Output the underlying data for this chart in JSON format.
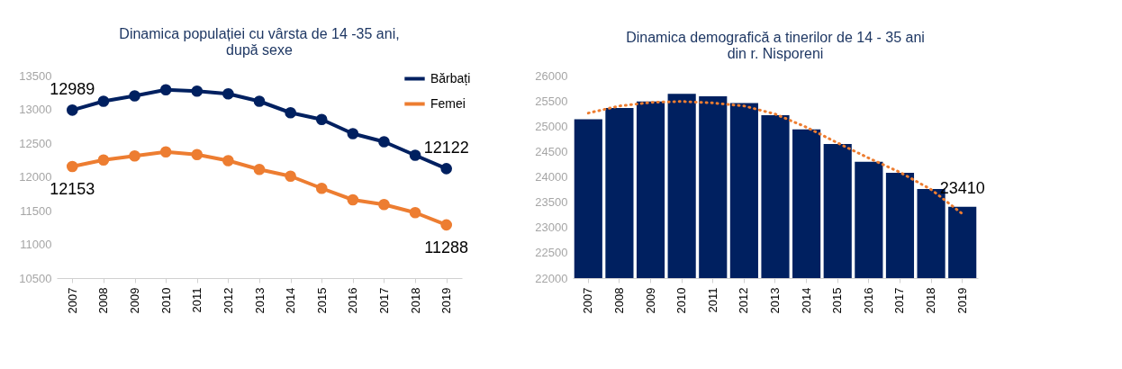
{
  "chart_data": [
    {
      "type": "line",
      "title": "Dinamica populației cu vârsta de 14 -35 ani,\ndupă sexe",
      "categories": [
        "2007",
        "2008",
        "2009",
        "2010",
        "2011",
        "2012",
        "2013",
        "2014",
        "2015",
        "2016",
        "2017",
        "2018",
        "2019"
      ],
      "series": [
        {
          "name": "Bărbați",
          "color": "#002060",
          "values": [
            12989,
            13120,
            13200,
            13290,
            13270,
            13230,
            13120,
            12950,
            12850,
            12640,
            12520,
            12320,
            12122
          ],
          "value_labels": [
            "12989",
            null,
            null,
            null,
            null,
            null,
            null,
            null,
            null,
            null,
            null,
            null,
            "12122"
          ]
        },
        {
          "name": "Femei",
          "color": "#ed7d31",
          "values": [
            12153,
            12250,
            12310,
            12370,
            12330,
            12240,
            12110,
            12010,
            11830,
            11660,
            11590,
            11470,
            11288
          ],
          "value_labels": [
            "12153",
            null,
            null,
            null,
            null,
            null,
            null,
            null,
            null,
            null,
            null,
            null,
            "11288"
          ]
        }
      ],
      "ylim": [
        10500,
        13500
      ],
      "yticks": [
        10500,
        11000,
        11500,
        12000,
        12500,
        13000,
        13500
      ],
      "legend": "top right",
      "marker": "circle"
    },
    {
      "type": "bar",
      "title": "Dinamica demografică a tinerilor de 14 - 35 ani\ndin r. Nisporeni",
      "categories": [
        "2007",
        "2008",
        "2009",
        "2010",
        "2011",
        "2012",
        "2013",
        "2014",
        "2015",
        "2016",
        "2017",
        "2018",
        "2019"
      ],
      "series": [
        {
          "color": "#002060",
          "values": [
            25140,
            25360,
            25490,
            25640,
            25590,
            25460,
            25220,
            24940,
            24650,
            24300,
            24080,
            23760,
            23410
          ],
          "value_labels": [
            null,
            null,
            null,
            null,
            null,
            null,
            null,
            null,
            null,
            null,
            null,
            null,
            "23410"
          ]
        },
        {
          "type": "line",
          "color": "#ed7d31",
          "line_style": "dotted",
          "values": [
            25260,
            25400,
            25470,
            25490,
            25460,
            25400,
            25240,
            24980,
            24670,
            24370,
            24090,
            23750,
            23270
          ]
        }
      ],
      "ylim": [
        22000,
        26000
      ],
      "yticks": [
        22000,
        22500,
        23000,
        23500,
        24000,
        24500,
        25000,
        25500,
        26000
      ]
    }
  ]
}
